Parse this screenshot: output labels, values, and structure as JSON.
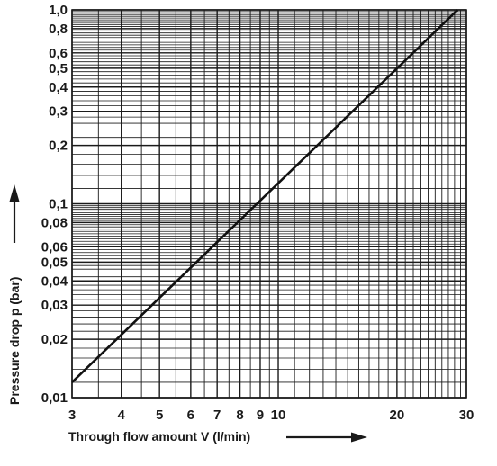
{
  "chart_data": {
    "type": "line",
    "title": "",
    "xlabel": "Through flow amount V (l/min)",
    "ylabel": "Pressure drop   p (bar)",
    "x_scale": "log",
    "y_scale": "log",
    "xlim": [
      3,
      30
    ],
    "ylim": [
      0.01,
      1.0
    ],
    "grid": true,
    "x_tick_labels": [
      "3",
      "4",
      "5",
      "6",
      "7",
      "8",
      "9",
      "10",
      "20",
      "30"
    ],
    "y_tick_labels": [
      "0,01",
      "0,02",
      "0,03",
      "0,04",
      "0,05",
      "0,06",
      "0,08",
      "0,1",
      "0,2",
      "0,3",
      "0,4",
      "0,5",
      "0,6",
      "0,8",
      "1,0"
    ],
    "series": [
      {
        "x": [
          3,
          28.5
        ],
        "y": [
          0.012,
          1.0
        ]
      }
    ]
  }
}
